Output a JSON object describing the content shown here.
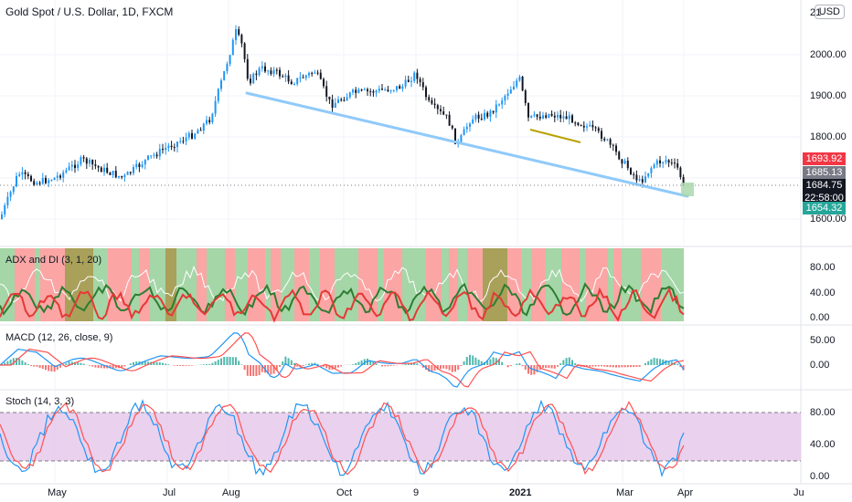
{
  "header": {
    "title": "Gold Spot / U.S. Dollar, 1D, FXCM",
    "currency": "USD"
  },
  "axis": {
    "price_ticks": [
      "2000.00",
      "1900.00",
      "1800.00",
      "1600.00"
    ],
    "price_top_partial": "21",
    "adx_ticks": [
      "80.00",
      "40.00",
      "0.00"
    ],
    "macd_ticks": [
      "50.00",
      "0.00"
    ],
    "stoch_ticks": [
      "80.00",
      "40.00",
      "0.00"
    ],
    "time_labels": [
      "May",
      "Jul",
      "Aug",
      "Oct",
      "9",
      "2021",
      "Mar",
      "Apr",
      "Ju"
    ]
  },
  "price_tags": {
    "high_tag": "1693.92",
    "mid_tag": "1685.13",
    "last_price": "1684.75",
    "countdown": "22:58:00",
    "low_tag": "1654.32"
  },
  "panels": {
    "adx": "ADX and DI (3, 1, 20)",
    "macd": "MACD (12, 26, close, 9)",
    "stoch": "Stoch (14, 3, 3)"
  },
  "colors": {
    "up_candle": "#2196f3",
    "down_candle": "#131722",
    "trendline": "#90caf9",
    "small_trendline": "#b8a200",
    "adx_plus": "#2e7d32",
    "adx_minus": "#e53935",
    "adx_band_red": "#fba5a5",
    "adx_band_green": "#a5d6a7",
    "adx_band_olive": "#a9a05a",
    "macd_line": "#2196f3",
    "signal_line": "#ff5252",
    "stoch_band": "#e1bee7",
    "tag_red": "#f23645",
    "tag_grey": "#787b86",
    "tag_black": "#131722",
    "tag_green": "#26a69a"
  }
}
